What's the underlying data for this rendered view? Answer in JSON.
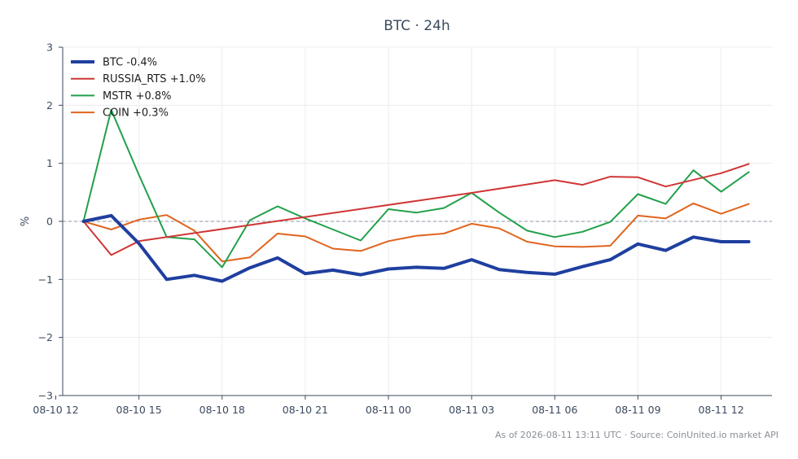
{
  "chart_data": {
    "type": "line",
    "title": "BTC · 24h",
    "xlabel": "",
    "ylabel": "%",
    "ylim": [
      -3,
      3
    ],
    "yticks": [
      3,
      2,
      1,
      0,
      -1,
      -2,
      -3
    ],
    "ytick_labels": [
      "3",
      "2",
      "1",
      "0",
      "−1",
      "−2",
      "−3"
    ],
    "xlim": [
      "2026-08-10 12:15",
      "2026-08-11 13:50"
    ],
    "xticks": [
      "2026-08-10 12:00",
      "2026-08-10 15:00",
      "2026-08-10 18:00",
      "2026-08-10 21:00",
      "2026-08-11 00:00",
      "2026-08-11 03:00",
      "2026-08-11 06:00",
      "2026-08-11 09:00",
      "2026-08-11 12:00"
    ],
    "xtick_labels": [
      "08-10 12",
      "08-10 15",
      "08-10 18",
      "08-10 21",
      "08-11 00",
      "08-11 03",
      "08-11 06",
      "08-11 09",
      "08-11 12"
    ],
    "grid": true,
    "zero_line": true,
    "legend_position": "top-left",
    "series": [
      {
        "name": "BTC -0.4%",
        "color": "#1f3f9f",
        "x": [
          "2026-08-10 13:00",
          "2026-08-10 14:00",
          "2026-08-10 15:00",
          "2026-08-10 16:00",
          "2026-08-10 17:00",
          "2026-08-10 18:00",
          "2026-08-10 19:00",
          "2026-08-10 20:00",
          "2026-08-10 21:00",
          "2026-08-10 22:00",
          "2026-08-10 23:00",
          "2026-08-11 00:00",
          "2026-08-11 01:00",
          "2026-08-11 02:00",
          "2026-08-11 03:00",
          "2026-08-11 04:00",
          "2026-08-11 05:00",
          "2026-08-11 06:00",
          "2026-08-11 07:00",
          "2026-08-11 08:00",
          "2026-08-11 09:00",
          "2026-08-11 10:00",
          "2026-08-11 11:00",
          "2026-08-11 12:00",
          "2026-08-11 13:00"
        ],
        "values": [
          0,
          0.1,
          -0.38,
          -1.0,
          -0.93,
          -1.03,
          -0.8,
          -0.63,
          -0.9,
          -0.84,
          -0.92,
          -0.82,
          -0.79,
          -0.81,
          -0.66,
          -0.83,
          -0.88,
          -0.91,
          -0.78,
          -0.66,
          -0.39,
          -0.5,
          -0.27,
          -0.35,
          -0.35
        ]
      },
      {
        "name": "RUSSIA_RTS +1.0%",
        "color": "#d03535",
        "x": [
          "2026-08-10 13:00",
          "2026-08-10 14:00",
          "2026-08-10 15:00",
          "2026-08-11 03:00",
          "2026-08-11 06:00",
          "2026-08-11 07:00",
          "2026-08-11 08:00",
          "2026-08-11 09:00",
          "2026-08-11 10:00",
          "2026-08-11 12:00",
          "2026-08-11 13:00"
        ],
        "values": [
          0,
          -0.58,
          -0.34,
          0.49,
          0.71,
          0.63,
          0.77,
          0.76,
          0.6,
          0.83,
          0.99
        ]
      },
      {
        "name": "MSTR +0.8%",
        "color": "#22a04a",
        "x": [
          "2026-08-10 13:00",
          "2026-08-10 14:00",
          "2026-08-10 15:00",
          "2026-08-10 16:00",
          "2026-08-10 17:00",
          "2026-08-10 18:00",
          "2026-08-10 19:00",
          "2026-08-10 20:00",
          "2026-08-10 21:00",
          "2026-08-10 22:00",
          "2026-08-10 23:00",
          "2026-08-11 00:00",
          "2026-08-11 01:00",
          "2026-08-11 02:00",
          "2026-08-11 03:00",
          "2026-08-11 04:00",
          "2026-08-11 05:00",
          "2026-08-11 06:00",
          "2026-08-11 07:00",
          "2026-08-11 08:00",
          "2026-08-11 09:00",
          "2026-08-11 10:00",
          "2026-08-11 11:00",
          "2026-08-11 12:00",
          "2026-08-11 13:00"
        ],
        "values": [
          0,
          1.92,
          0.8,
          -0.27,
          -0.31,
          -0.79,
          0.02,
          0.26,
          0.05,
          -0.14,
          -0.33,
          0.21,
          0.15,
          0.23,
          0.49,
          0.15,
          -0.16,
          -0.27,
          -0.18,
          -0.01,
          0.47,
          0.3,
          0.88,
          0.51,
          0.85
        ]
      },
      {
        "name": "COIN +0.3%",
        "color": "#e0641e",
        "x": [
          "2026-08-10 13:00",
          "2026-08-10 14:00",
          "2026-08-10 15:00",
          "2026-08-10 16:00",
          "2026-08-10 17:00",
          "2026-08-10 18:00",
          "2026-08-10 19:00",
          "2026-08-10 20:00",
          "2026-08-10 21:00",
          "2026-08-10 22:00",
          "2026-08-10 23:00",
          "2026-08-11 00:00",
          "2026-08-11 01:00",
          "2026-08-11 02:00",
          "2026-08-11 03:00",
          "2026-08-11 04:00",
          "2026-08-11 05:00",
          "2026-08-11 06:00",
          "2026-08-11 07:00",
          "2026-08-11 08:00",
          "2026-08-11 09:00",
          "2026-08-11 10:00",
          "2026-08-11 11:00",
          "2026-08-11 12:00",
          "2026-08-11 13:00"
        ],
        "values": [
          0,
          -0.14,
          0.03,
          0.11,
          -0.16,
          -0.69,
          -0.62,
          -0.21,
          -0.26,
          -0.47,
          -0.51,
          -0.34,
          -0.25,
          -0.21,
          -0.04,
          -0.12,
          -0.35,
          -0.43,
          -0.44,
          -0.42,
          0.1,
          0.05,
          0.31,
          0.13,
          0.3
        ]
      }
    ],
    "footer": "As of 2026-08-11 13:11 UTC · Source: CoinUnited.io market API"
  }
}
